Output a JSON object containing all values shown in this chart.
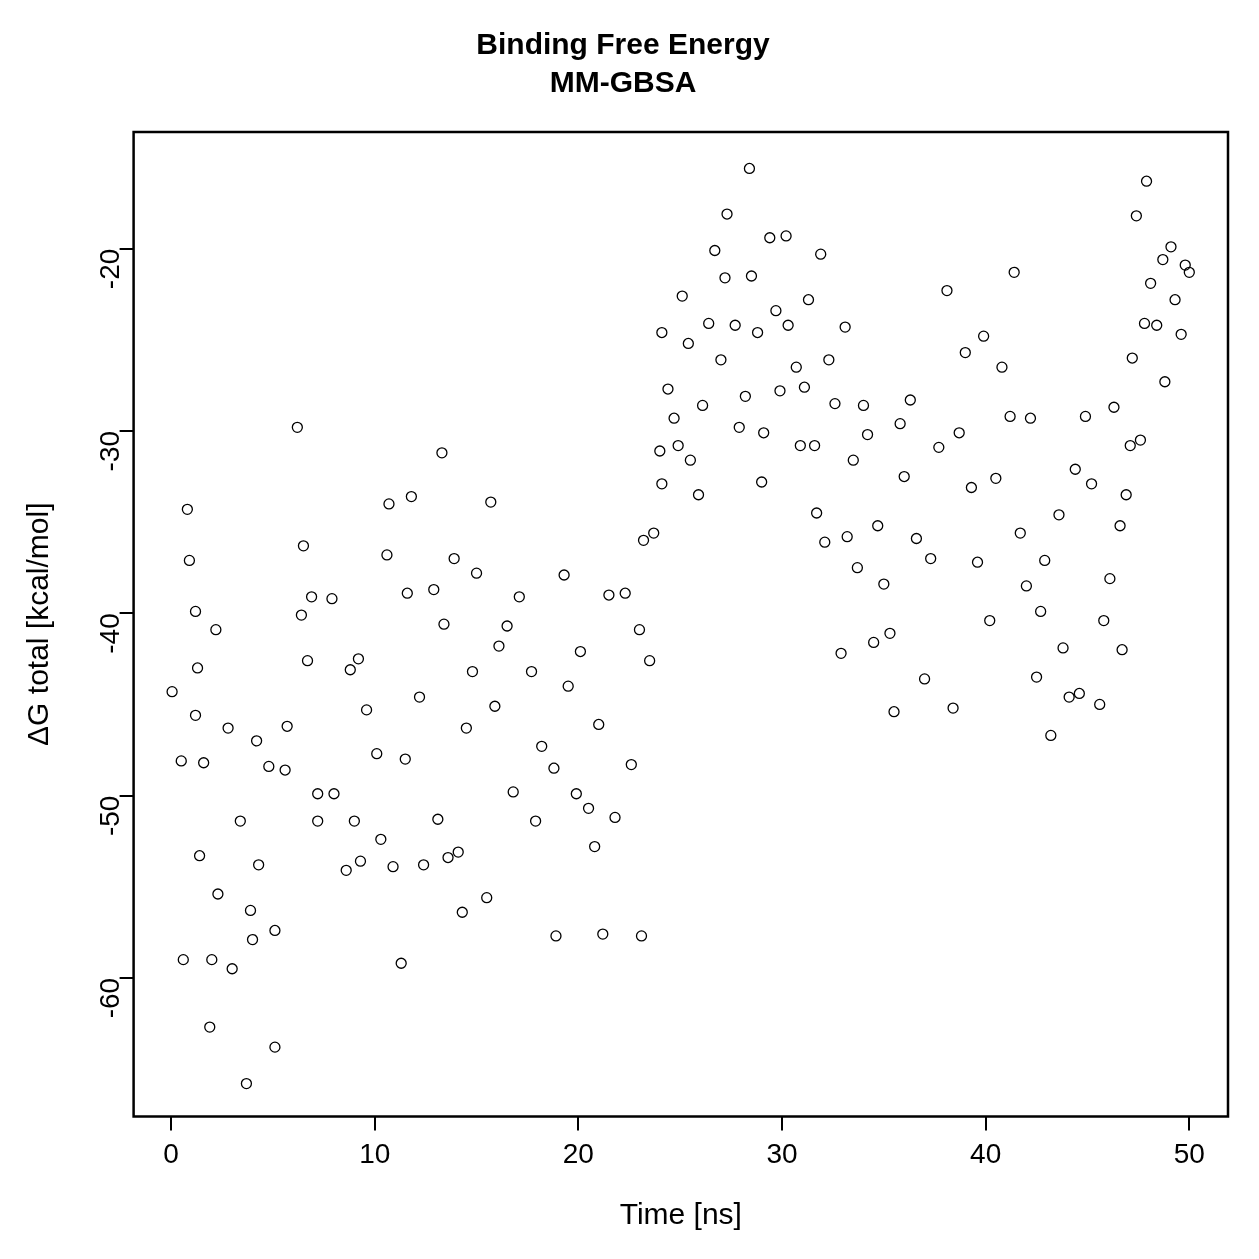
{
  "chart_data": {
    "type": "scatter",
    "title": "Binding Free Energy",
    "subtitle": "MM-GBSA",
    "xlabel": "Time [ns]",
    "ylabel": "ΔG total [kcal/mol]",
    "xlim": [
      -1.84,
      51.9
    ],
    "ylim": [
      -67.6,
      -13.6
    ],
    "xticks": [
      0,
      10,
      20,
      30,
      40,
      50
    ],
    "yticks": [
      -60,
      -50,
      -40,
      -30,
      -20
    ],
    "grid": false,
    "legend": false,
    "marker": "circle",
    "series": [
      {
        "color": "#000000",
        "x": [
          0.05,
          0.5,
          0.6,
          0.8,
          0.9,
          1.2,
          1.3,
          1.2,
          1.4,
          1.6,
          1.9,
          2.0,
          2.2,
          2.3,
          2.8,
          3.0,
          3.4,
          3.7,
          3.9,
          4.0,
          4.2,
          4.3,
          4.8,
          5.1,
          5.1,
          5.6,
          5.7,
          6.2,
          6.5,
          6.4,
          6.7,
          6.9,
          7.2,
          7.2,
          7.9,
          8.0,
          8.6,
          8.8,
          9.0,
          9.2,
          9.3,
          9.6,
          10.1,
          10.3,
          10.6,
          10.7,
          10.9,
          11.3,
          11.5,
          11.6,
          11.8,
          12.2,
          12.4,
          12.9,
          13.1,
          13.3,
          13.4,
          13.6,
          13.9,
          14.1,
          14.3,
          14.5,
          14.8,
          15.0,
          15.5,
          15.7,
          15.9,
          16.1,
          16.5,
          16.8,
          17.1,
          17.7,
          17.9,
          18.2,
          18.8,
          18.9,
          19.3,
          19.5,
          19.9,
          20.1,
          20.5,
          20.8,
          21.0,
          21.2,
          21.5,
          21.8,
          22.3,
          22.6,
          23.0,
          23.1,
          23.2,
          23.5,
          23.7,
          24.0,
          24.1,
          24.1,
          24.4,
          24.7,
          24.9,
          25.1,
          25.4,
          25.5,
          25.9,
          26.1,
          26.4,
          26.7,
          27.0,
          27.2,
          27.3,
          27.7,
          27.9,
          28.2,
          28.4,
          28.5,
          28.8,
          29.0,
          29.1,
          29.4,
          29.7,
          29.9,
          30.2,
          30.3,
          30.7,
          30.9,
          31.1,
          31.3,
          31.6,
          31.7,
          31.9,
          32.1,
          32.3,
          32.6,
          32.9,
          33.1,
          33.2,
          33.5,
          33.7,
          34.0,
          34.2,
          34.5,
          34.7,
          35.0,
          35.3,
          35.5,
          35.8,
          36.0,
          36.3,
          36.6,
          37.0,
          37.3,
          37.7,
          38.1,
          38.4,
          38.7,
          39.0,
          39.3,
          39.6,
          39.9,
          40.2,
          40.5,
          40.8,
          41.2,
          41.4,
          41.7,
          42.0,
          42.2,
          42.5,
          42.7,
          42.9,
          43.2,
          43.6,
          43.8,
          44.1,
          44.4,
          44.6,
          44.9,
          45.2,
          45.6,
          45.8,
          46.1,
          46.3,
          46.6,
          46.7,
          46.9,
          47.1,
          47.2,
          47.4,
          47.6,
          47.8,
          47.9,
          48.1,
          48.4,
          48.7,
          48.8,
          49.1,
          49.3,
          49.6,
          49.8,
          50.0
        ],
        "values": [
          -44.3,
          -48.1,
          -59.0,
          -34.3,
          -37.1,
          -39.9,
          -43.0,
          -45.6,
          -53.3,
          -48.2,
          -62.7,
          -59.0,
          -40.9,
          -55.4,
          -46.3,
          -59.5,
          -51.4,
          -65.8,
          -56.3,
          -57.9,
          -47.0,
          -53.8,
          -48.4,
          -57.4,
          -63.8,
          -48.6,
          -46.2,
          -29.8,
          -36.3,
          -40.1,
          -42.6,
          -39.1,
          -49.9,
          -51.4,
          -39.2,
          -49.9,
          -54.1,
          -43.1,
          -51.4,
          -42.5,
          -53.6,
          -45.3,
          -47.7,
          -52.4,
          -36.8,
          -34.0,
          -53.9,
          -59.2,
          -48.0,
          -38.9,
          -33.6,
          -44.6,
          -53.8,
          -38.7,
          -51.3,
          -31.2,
          -40.6,
          -53.4,
          -37.0,
          -53.1,
          -56.4,
          -46.3,
          -43.2,
          -37.8,
          -55.6,
          -33.9,
          -45.1,
          -41.8,
          -40.7,
          -49.8,
          -39.1,
          -43.2,
          -51.4,
          -47.3,
          -48.5,
          -57.7,
          -37.9,
          -44.0,
          -49.9,
          -42.1,
          -50.7,
          -52.8,
          -46.1,
          -57.6,
          -39.0,
          -51.2,
          -38.9,
          -48.3,
          -40.9,
          -57.7,
          -36.0,
          -42.6,
          -35.6,
          -31.1,
          -32.9,
          -24.6,
          -27.7,
          -29.3,
          -30.8,
          -22.6,
          -25.2,
          -31.6,
          -33.5,
          -28.6,
          -24.1,
          -20.1,
          -26.1,
          -21.6,
          -18.1,
          -24.2,
          -29.8,
          -28.1,
          -15.6,
          -21.5,
          -24.6,
          -32.8,
          -30.1,
          -19.4,
          -23.4,
          -27.8,
          -19.3,
          -24.2,
          -26.5,
          -30.8,
          -27.6,
          -22.8,
          -30.8,
          -34.5,
          -20.3,
          -36.1,
          -26.1,
          -28.5,
          -42.2,
          -24.3,
          -35.8,
          -31.6,
          -37.5,
          -28.6,
          -30.2,
          -41.6,
          -35.2,
          -38.4,
          -41.1,
          -45.4,
          -29.6,
          -32.5,
          -28.3,
          -35.9,
          -43.6,
          -37.0,
          -30.9,
          -22.3,
          -45.2,
          -30.1,
          -25.7,
          -33.1,
          -37.2,
          -24.8,
          -40.4,
          -32.6,
          -26.5,
          -29.2,
          -21.3,
          -35.6,
          -38.5,
          -29.3,
          -43.5,
          -39.9,
          -37.1,
          -46.7,
          -34.6,
          -41.9,
          -44.6,
          -32.1,
          -44.4,
          -29.2,
          -32.9,
          -45.0,
          -40.4,
          -38.1,
          -28.7,
          -35.2,
          -42.0,
          -33.5,
          -30.8,
          -26.0,
          -18.2,
          -30.5,
          -24.1,
          -16.3,
          -21.9,
          -24.2,
          -20.6,
          -27.3,
          -19.9,
          -22.8,
          -24.7,
          -20.9,
          -21.3
        ]
      }
    ]
  }
}
